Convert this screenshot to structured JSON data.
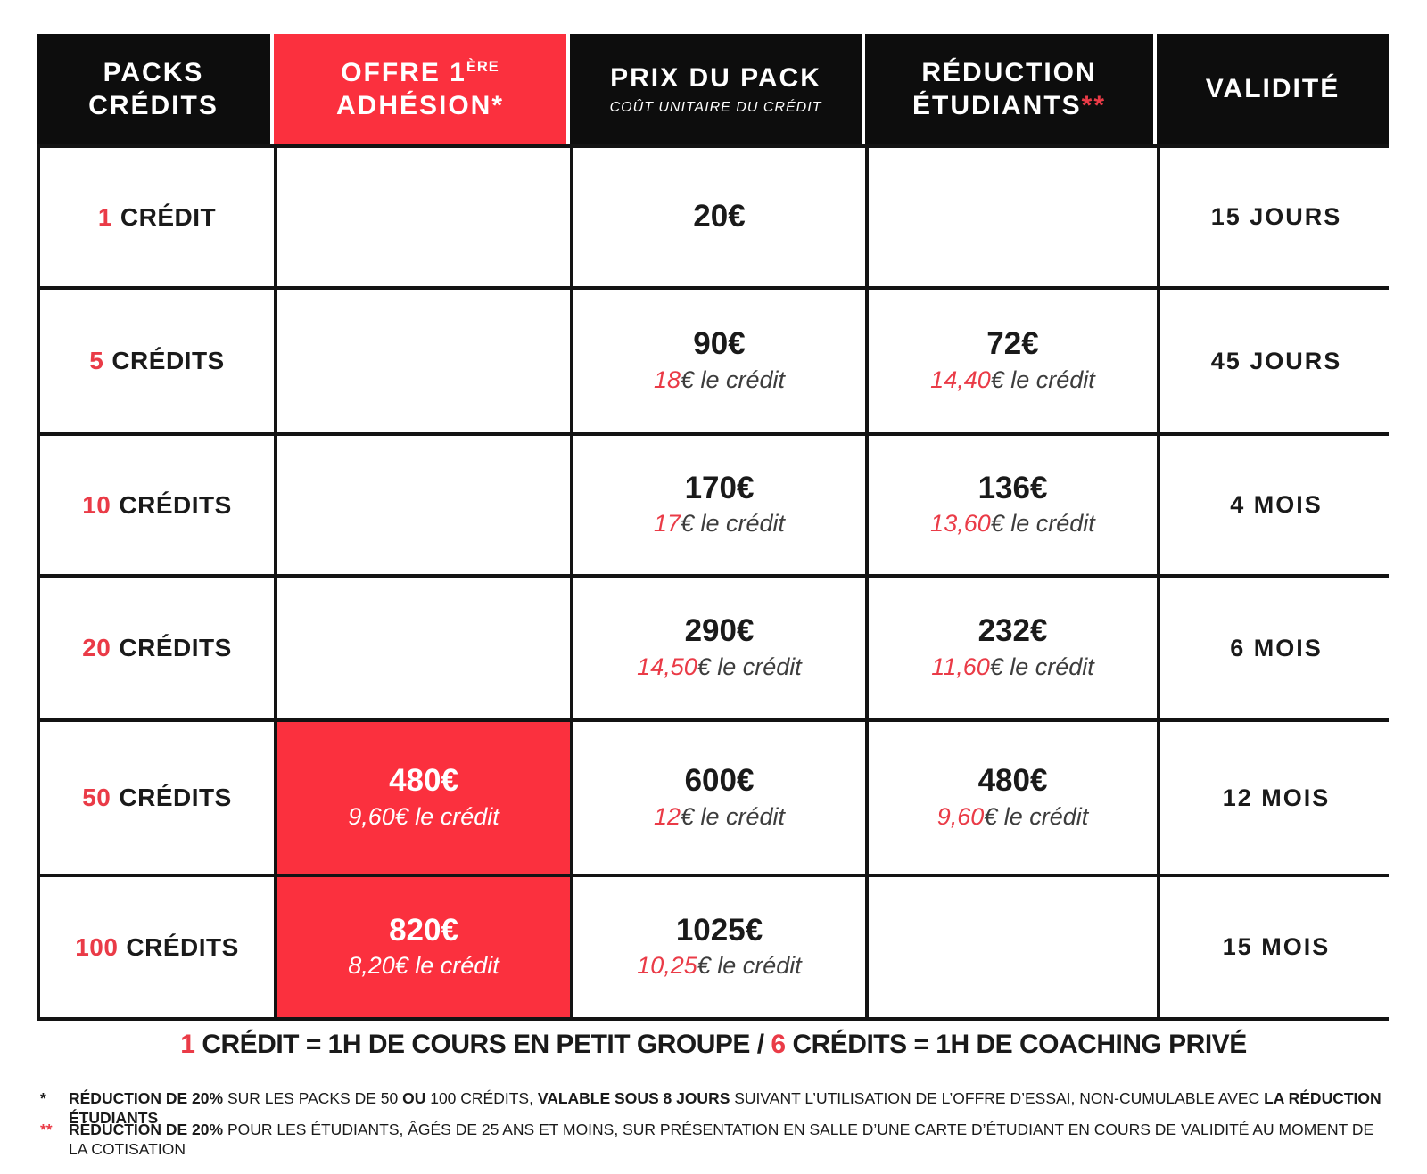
{
  "colors": {
    "accent_red": "#FB303E",
    "text_red": "#EA3B47",
    "header_black": "#0D0D0D",
    "border_black": "#131313"
  },
  "header": {
    "packs": {
      "line1": "PACKS",
      "line2": "CRÉDITS"
    },
    "offre": {
      "pre": "OFFRE 1",
      "sup": "ÈRE",
      "line2": "ADHÉSION*"
    },
    "prix": {
      "title": "PRIX DU PACK",
      "subtitle": "COÛT UNITAIRE DU CRÉDIT"
    },
    "reduction": {
      "line1": "RÉDUCTION",
      "line2": "ÉTUDIANTS",
      "stars": "**"
    },
    "validite": "VALIDITÉ"
  },
  "rows": [
    {
      "num": "1",
      "label": "CRÉDIT",
      "offre_price": "",
      "offre_unit": "",
      "prix_price": "20€",
      "prix_unit_num": "",
      "prix_unit_suffix": "",
      "red_price": "",
      "red_unit_num": "",
      "red_unit_suffix": "",
      "validite": "15 JOURS"
    },
    {
      "num": "5",
      "label": "CRÉDITS",
      "offre_price": "",
      "offre_unit": "",
      "prix_price": "90€",
      "prix_unit_num": "18",
      "prix_unit_suffix": "€ le crédit",
      "red_price": "72€",
      "red_unit_num": "14,40",
      "red_unit_suffix": "€ le crédit",
      "validite": "45 JOURS"
    },
    {
      "num": "10",
      "label": "CRÉDITS",
      "offre_price": "",
      "offre_unit": "",
      "prix_price": "170€",
      "prix_unit_num": "17",
      "prix_unit_suffix": "€ le crédit",
      "red_price": "136€",
      "red_unit_num": "13,60",
      "red_unit_suffix": "€ le crédit",
      "validite": "4 MOIS"
    },
    {
      "num": "20",
      "label": "CRÉDITS",
      "offre_price": "",
      "offre_unit": "",
      "prix_price": "290€",
      "prix_unit_num": "14,50",
      "prix_unit_suffix": "€ le crédit",
      "red_price": "232€",
      "red_unit_num": "11,60",
      "red_unit_suffix": "€ le crédit",
      "validite": "6 MOIS"
    },
    {
      "num": "50",
      "label": "CRÉDITS",
      "offre_price": "480€",
      "offre_unit": "9,60€ le crédit",
      "prix_price": "600€",
      "prix_unit_num": "12",
      "prix_unit_suffix": "€ le crédit",
      "red_price": "480€",
      "red_unit_num": "9,60",
      "red_unit_suffix": "€ le crédit",
      "validite": "12 MOIS"
    },
    {
      "num": "100",
      "label": "CRÉDITS",
      "offre_price": "820€",
      "offre_unit": "8,20€ le crédit",
      "prix_price": "1025€",
      "prix_unit_num": "10,25",
      "prix_unit_suffix": "€ le crédit",
      "red_price": "",
      "red_unit_num": "",
      "red_unit_suffix": "",
      "validite": "15 MOIS"
    }
  ],
  "legend": {
    "num1": "1",
    "seg1": " CRÉDIT = 1H DE COURS EN PETIT GROUPE / ",
    "num2": "6",
    "seg2": " CRÉDITS = 1H DE COACHING PRIVÉ"
  },
  "footnote1": {
    "star": "*",
    "b1": "RÉDUCTION DE 20%",
    "r1": " SUR LES PACKS DE 50 ",
    "b2": "OU",
    "r2": " 100 CRÉDITS, ",
    "b3": "VALABLE SOUS 8 JOURS",
    "r3": " SUIVANT L’UTILISATION DE L’OFFRE D’ESSAI, NON-CUMULABLE AVEC ",
    "b4": "LA RÉDUCTION ÉTUDIANTS"
  },
  "footnote2": {
    "stars": "**",
    "b1": "RÉDUCTION DE 20%",
    "r1": " POUR LES ÉTUDIANTS, ÂGÉS DE 25 ANS ET MOINS, SUR PRÉSENTATION EN SALLE D’UNE CARTE D’ÉTUDIANT EN COURS DE VALIDITÉ AU MOMENT DE LA COTISATION"
  }
}
